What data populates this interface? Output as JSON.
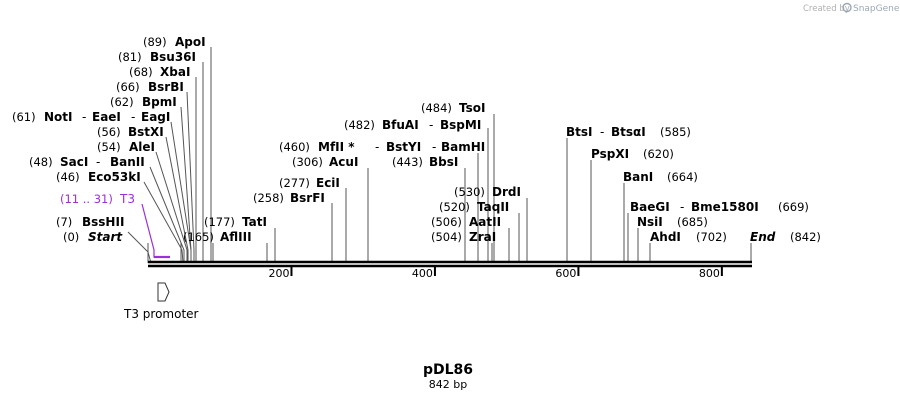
{
  "credit": {
    "prefix": "Created by",
    "brand": "SnapGene"
  },
  "map": {
    "name": "pDL86",
    "length_label": "842 bp",
    "length_bp": 842,
    "ticks": [
      200,
      400,
      600,
      800
    ]
  },
  "feature": {
    "name": "T3 promoter",
    "start": 11,
    "end": 31
  },
  "primer": {
    "range_label": "(11 .. 31)",
    "name": "T3"
  },
  "markers": [
    {
      "name": "Start",
      "pos_label": "(0)",
      "bp": 0
    },
    {
      "name": "End",
      "pos_label": "(842)",
      "bp": 842
    }
  ],
  "sites": [
    {
      "pos_label": "(7)",
      "names": [
        "BssHII"
      ],
      "bp": 7
    },
    {
      "pos_label": "(46)",
      "names": [
        "Eco53kI"
      ],
      "bp": 46
    },
    {
      "pos_label": "(48)",
      "names": [
        "SacI",
        "BanII"
      ],
      "bp": 48
    },
    {
      "pos_label": "(54)",
      "names": [
        "AleI"
      ],
      "bp": 54
    },
    {
      "pos_label": "(56)",
      "names": [
        "BstXI"
      ],
      "bp": 56
    },
    {
      "pos_label": "(61)",
      "names": [
        "NotI",
        "EaeI",
        "EagI"
      ],
      "bp": 61
    },
    {
      "pos_label": "(62)",
      "names": [
        "BpmI"
      ],
      "bp": 62
    },
    {
      "pos_label": "(66)",
      "names": [
        "BsrBI"
      ],
      "bp": 66
    },
    {
      "pos_label": "(68)",
      "names": [
        "XbaI"
      ],
      "bp": 68
    },
    {
      "pos_label": "(81)",
      "names": [
        "Bsu36I"
      ],
      "bp": 81
    },
    {
      "pos_label": "(89)",
      "names": [
        "ApoI"
      ],
      "bp": 89
    },
    {
      "pos_label": "(165)",
      "names": [
        "AflIII"
      ],
      "bp": 165
    },
    {
      "pos_label": "(177)",
      "names": [
        "TatI"
      ],
      "bp": 177
    },
    {
      "pos_label": "(258)",
      "names": [
        "BsrFI"
      ],
      "bp": 258
    },
    {
      "pos_label": "(277)",
      "names": [
        "EciI"
      ],
      "bp": 277
    },
    {
      "pos_label": "(306)",
      "names": [
        "AcuI"
      ],
      "bp": 306
    },
    {
      "pos_label": "(460)",
      "names": [
        "MfII *",
        "BstYI",
        "BamHI"
      ],
      "bp": 460
    },
    {
      "pos_label": "(443)",
      "names": [
        "BbsI"
      ],
      "bp": 443
    },
    {
      "pos_label": "(482)",
      "names": [
        "BfuAI",
        "BspMI"
      ],
      "bp": 482
    },
    {
      "pos_label": "(484)",
      "names": [
        "TsoI"
      ],
      "bp": 484
    },
    {
      "pos_label": "(530)",
      "names": [
        "DrdI"
      ],
      "bp": 530
    },
    {
      "pos_label": "(520)",
      "names": [
        "TaqII"
      ],
      "bp": 520
    },
    {
      "pos_label": "(506)",
      "names": [
        "AatII"
      ],
      "bp": 506
    },
    {
      "pos_label": "(504)",
      "names": [
        "ZraI"
      ],
      "bp": 504
    },
    {
      "pos_label": "(585)",
      "names": [
        "BtsI",
        "BtsαI"
      ],
      "bp": 585
    },
    {
      "pos_label": "(620)",
      "names": [
        "PspXI"
      ],
      "bp": 620
    },
    {
      "pos_label": "(664)",
      "names": [
        "BanI"
      ],
      "bp": 664
    },
    {
      "pos_label": "(669)",
      "names": [
        "BaeGI",
        "Bme1580I"
      ],
      "bp": 669
    },
    {
      "pos_label": "(685)",
      "names": [
        "NsiI"
      ],
      "bp": 685
    },
    {
      "pos_label": "(702)",
      "names": [
        "AhdI"
      ],
      "bp": 702
    }
  ]
}
